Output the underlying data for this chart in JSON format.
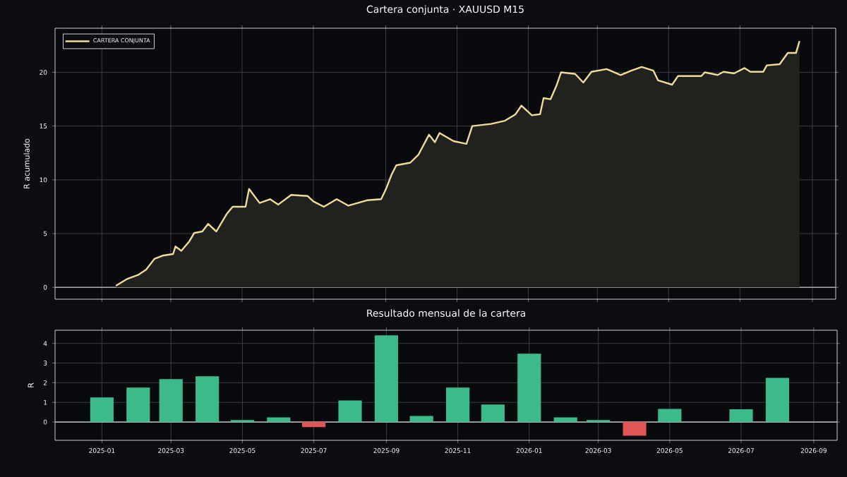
{
  "chart_data": [
    {
      "type": "area",
      "title": "Cartera conjunta · XAUUSD M15",
      "ylabel": "R acumulado",
      "series": [
        {
          "name": "CARTERA CONJUNTA",
          "color": "#f0dc9a",
          "x": [
            "2025-01-13",
            "2025-01-23",
            "2025-02-01",
            "2025-02-08",
            "2025-02-15",
            "2025-02-22",
            "2025-03-03",
            "2025-03-05",
            "2025-03-10",
            "2025-03-17",
            "2025-03-21",
            "2025-03-28",
            "2025-04-02",
            "2025-04-09",
            "2025-04-18",
            "2025-04-23",
            "2025-05-04",
            "2025-05-07",
            "2025-05-16",
            "2025-05-25",
            "2025-06-01",
            "2025-06-12",
            "2025-06-26",
            "2025-07-01",
            "2025-07-10",
            "2025-07-21",
            "2025-07-31",
            "2025-08-16",
            "2025-08-28",
            "2025-09-01",
            "2025-09-06",
            "2025-09-10",
            "2025-09-22",
            "2025-09-29",
            "2025-10-08",
            "2025-10-13",
            "2025-10-17",
            "2025-10-29",
            "2025-11-09",
            "2025-11-14",
            "2025-11-30",
            "2025-12-12",
            "2025-12-21",
            "2025-12-26",
            "2026-01-04",
            "2026-01-11",
            "2026-01-14",
            "2026-01-20",
            "2026-01-25",
            "2026-01-29",
            "2026-02-10",
            "2026-02-17",
            "2026-02-24",
            "2026-03-09",
            "2026-03-21",
            "2026-03-30",
            "2026-04-08",
            "2026-04-18",
            "2026-04-22",
            "2026-05-04",
            "2026-05-09",
            "2026-05-29",
            "2026-06-01",
            "2026-06-12",
            "2026-06-17",
            "2026-06-26",
            "2026-07-05",
            "2026-07-10",
            "2026-07-21",
            "2026-07-24",
            "2026-08-04",
            "2026-08-11",
            "2026-08-18",
            "2026-08-21"
          ],
          "values": [
            0.15,
            0.8,
            1.15,
            1.65,
            2.65,
            2.95,
            3.1,
            3.8,
            3.4,
            4.3,
            5.05,
            5.2,
            5.9,
            5.2,
            6.85,
            7.5,
            7.5,
            9.15,
            7.85,
            8.2,
            7.7,
            8.6,
            8.5,
            8.0,
            7.5,
            8.2,
            7.6,
            8.1,
            8.2,
            9.1,
            10.5,
            11.35,
            11.6,
            12.35,
            14.2,
            13.5,
            14.35,
            13.6,
            13.35,
            15.0,
            15.2,
            15.5,
            16.1,
            16.9,
            16.0,
            16.1,
            17.6,
            17.5,
            18.75,
            20.0,
            19.85,
            19.05,
            20.05,
            20.3,
            19.75,
            20.15,
            20.5,
            20.15,
            19.25,
            18.85,
            19.65,
            19.65,
            20.0,
            19.75,
            20.05,
            19.9,
            20.4,
            20.05,
            20.05,
            20.65,
            20.75,
            21.8,
            21.8,
            22.9
          ]
        }
      ],
      "xlim": [
        "2024-11-22",
        "2026-09-21"
      ],
      "xticks": [
        "2025-01",
        "2025-03",
        "2025-05",
        "2025-07",
        "2025-09",
        "2025-11",
        "2026-01",
        "2026-03",
        "2026-05",
        "2026-07",
        "2026-09"
      ],
      "ylim": [
        -1.1,
        24.1
      ],
      "yticks": [
        0,
        5,
        10,
        15,
        20
      ],
      "tick_labels": "y",
      "grid": true,
      "line_style": "solid",
      "legend": "top left",
      "ref_lines": [
        {
          "axis": "y",
          "value": 0,
          "color": "#aaaaaa"
        }
      ]
    },
    {
      "type": "bar",
      "title": "Resultado mensual de la cartera",
      "ylabel": "R",
      "x": [
        "2025-01",
        "2025-02",
        "2025-03",
        "2025-04",
        "2025-05",
        "2025-06",
        "2025-07",
        "2025-08",
        "2025-09",
        "2025-10",
        "2025-11",
        "2025-12",
        "2026-01",
        "2026-02",
        "2026-03",
        "2026-04",
        "2026-05",
        "2026-06",
        "2026-07",
        "2026-08"
      ],
      "values": [
        1.25,
        1.75,
        2.18,
        2.33,
        0.1,
        0.24,
        -0.26,
        1.1,
        4.41,
        0.31,
        1.75,
        0.89,
        3.48,
        0.24,
        0.1,
        -0.7,
        0.67,
        null,
        0.65,
        2.25
      ],
      "colors": [
        "#3dba8a",
        "#3dba8a",
        "#3dba8a",
        "#3dba8a",
        "#3dba8a",
        "#3dba8a",
        "#e05555",
        "#3dba8a",
        "#3dba8a",
        "#3dba8a",
        "#3dba8a",
        "#3dba8a",
        "#3dba8a",
        "#3dba8a",
        "#3dba8a",
        "#e05555",
        "#3dba8a",
        "#3dba8a",
        "#3dba8a",
        "#3dba8a"
      ],
      "xlim": [
        "2024-11-22",
        "2026-09-21"
      ],
      "xticks": [
        "2025-01",
        "2025-03",
        "2025-05",
        "2025-07",
        "2025-09",
        "2025-11",
        "2026-01",
        "2026-03",
        "2026-05",
        "2026-07",
        "2026-09"
      ],
      "ylim": [
        -0.93,
        4.67
      ],
      "yticks": [
        0,
        1,
        2,
        3,
        4
      ],
      "grid": true,
      "ref_lines": [
        {
          "axis": "y",
          "value": 0,
          "color": "#aaaaaa"
        }
      ]
    }
  ]
}
